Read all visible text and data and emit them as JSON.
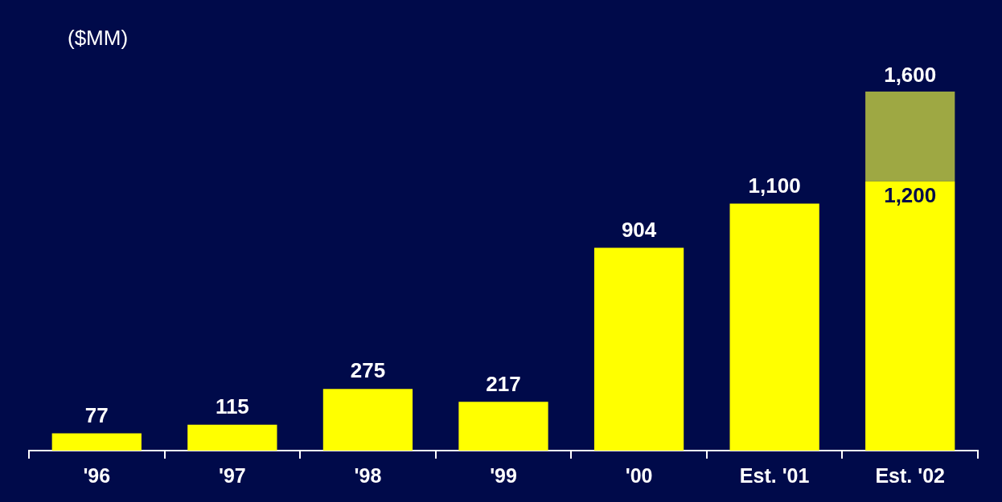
{
  "chart_data": {
    "type": "bar",
    "stacked": true,
    "legend": false,
    "grid": false,
    "annotations": [
      "($MM)"
    ],
    "categories": [
      "'96",
      "'97",
      "'98",
      "'99",
      "'00",
      "Est. '01",
      "Est. '02"
    ],
    "series": [
      {
        "color": "#ffff00",
        "values": [
          77,
          115,
          275,
          217,
          904,
          1100,
          1200
        ],
        "value_labels": [
          "77",
          "115",
          "275",
          "217",
          "904",
          "1,100",
          "1,200"
        ]
      },
      {
        "color": "#9ea843",
        "values": [
          null,
          null,
          null,
          null,
          null,
          null,
          400
        ]
      }
    ],
    "totals": [
      null,
      null,
      null,
      null,
      null,
      null,
      "1,600"
    ]
  }
}
